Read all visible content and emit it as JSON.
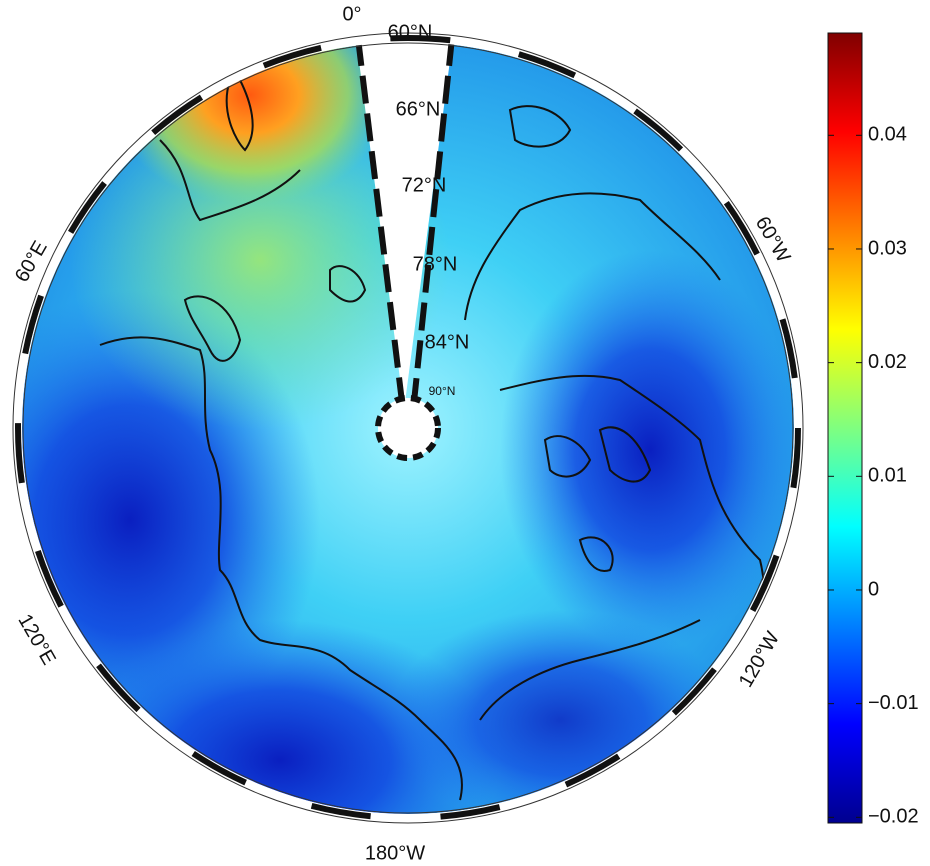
{
  "map": {
    "longitude_labels": [
      "0°",
      "60°E",
      "120°E",
      "180°W",
      "120°W",
      "60°W"
    ],
    "latitude_labels": [
      "60°N",
      "66°N",
      "72°N",
      "78°N",
      "84°N",
      "90°N"
    ]
  },
  "colorbar": {
    "ylim": [
      -0.0205,
      0.049
    ],
    "yticks": [
      0.04,
      0.03,
      0.02,
      0.01,
      0,
      {
        "value": -0.01,
        "label": "−0.01"
      },
      {
        "value": -0.02,
        "label": "−0.02"
      }
    ]
  }
}
